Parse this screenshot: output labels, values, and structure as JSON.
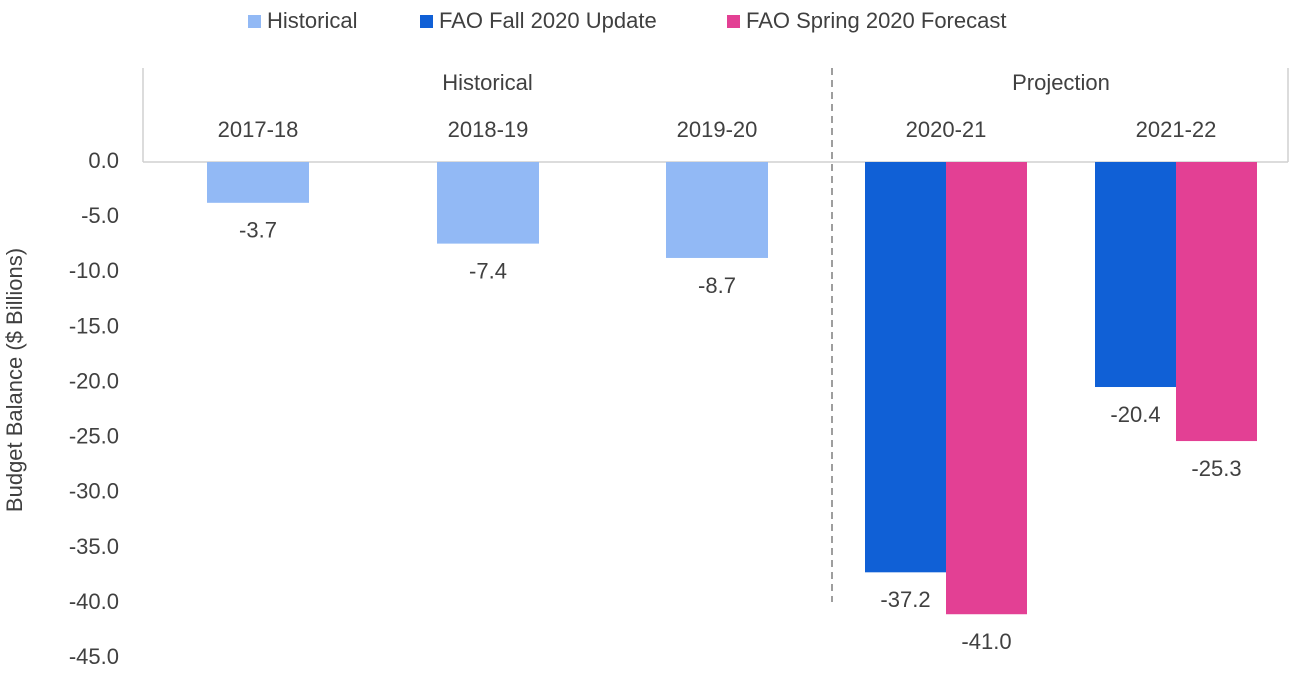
{
  "chart_data": {
    "type": "bar",
    "ylabel": "Budget Balance ($ Billions)",
    "ylim": [
      -45,
      0
    ],
    "yticks": [
      0,
      -5,
      -10,
      -15,
      -20,
      -25,
      -30,
      -35,
      -40,
      -45
    ],
    "ytick_labels": [
      "0.0",
      "-5.0",
      "-10.0",
      "-15.0",
      "-20.0",
      "-25.0",
      "-30.0",
      "-35.0",
      "-40.0",
      "-45.0"
    ],
    "categories": [
      "2017-18",
      "2018-19",
      "2019-20",
      "2020-21",
      "2021-22"
    ],
    "groups": [
      {
        "label": "Historical",
        "categories": [
          "2017-18",
          "2018-19",
          "2019-20"
        ]
      },
      {
        "label": "Projection",
        "categories": [
          "2020-21",
          "2021-22"
        ]
      }
    ],
    "series": [
      {
        "name": "Historical",
        "color": "#92b9f5",
        "values": [
          -3.7,
          -7.4,
          -8.7,
          null,
          null
        ],
        "labels": [
          "-3.7",
          "-7.4",
          "-8.7",
          "",
          ""
        ]
      },
      {
        "name": "FAO Fall 2020 Update",
        "color": "#1060d6",
        "values": [
          null,
          null,
          null,
          -37.2,
          -20.4
        ],
        "labels": [
          "",
          "",
          "",
          "-37.2",
          "-20.4"
        ]
      },
      {
        "name": "FAO Spring 2020 Forecast",
        "color": "#e34094",
        "values": [
          null,
          null,
          null,
          -41.0,
          -25.3
        ],
        "labels": [
          "",
          "",
          "",
          "-41.0",
          "-25.3"
        ]
      }
    ],
    "grid": false,
    "legend_position": "top"
  }
}
